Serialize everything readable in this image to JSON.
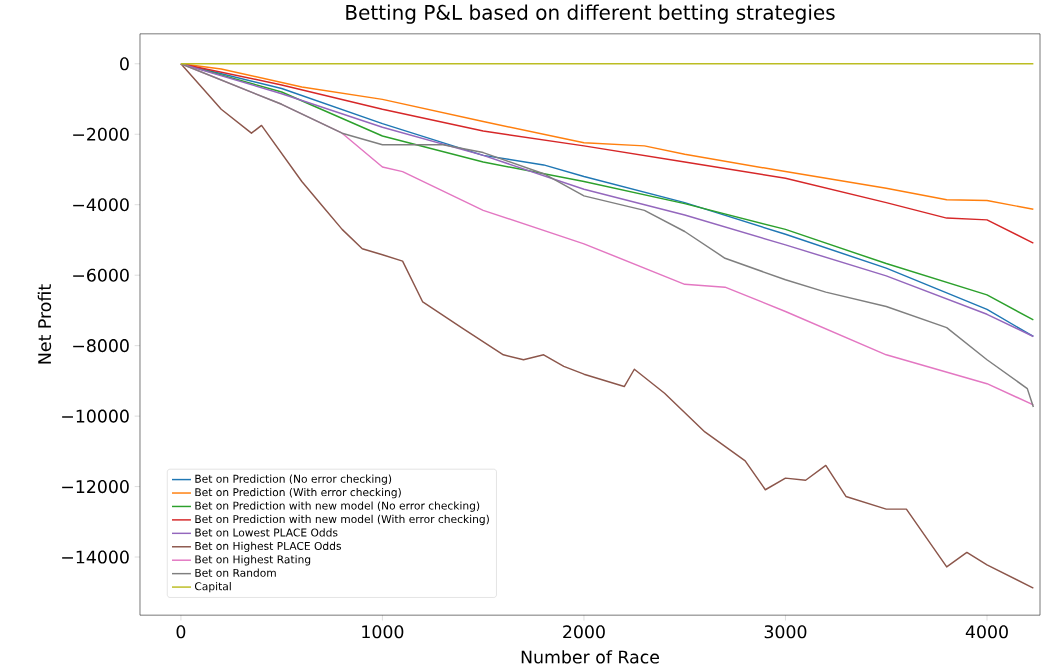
{
  "chart_data": {
    "type": "line",
    "title": "Betting P&L based on different betting strategies",
    "xlabel": "Number of Race",
    "ylabel": "Net Profit",
    "xlim": [
      -203,
      4263
    ],
    "ylim": [
      -15650,
      850
    ],
    "xticks": [
      0,
      1000,
      2000,
      3000,
      4000
    ],
    "yticks": [
      {
        "value": -14000,
        "label": "−14000"
      },
      {
        "value": -12000,
        "label": "−12000"
      },
      {
        "value": -10000,
        "label": "−10000"
      },
      {
        "value": -8000,
        "label": "−8000"
      },
      {
        "value": -6000,
        "label": "−6000"
      },
      {
        "value": -4000,
        "label": "−4000"
      },
      {
        "value": -2000,
        "label": "−2000"
      },
      0
    ],
    "legend": "bottom left",
    "grid": false,
    "marker": "none",
    "line_style": "solid",
    "series": [
      {
        "name": "Bet on Prediction (No error checking)",
        "color": "#1f77b4",
        "x": [
          0,
          500,
          1000,
          1500,
          1800,
          2000,
          2500,
          3000,
          3500,
          4000,
          4230
        ],
        "values": [
          0,
          -700,
          -1700,
          -2600,
          -2870,
          -3200,
          -3940,
          -4840,
          -5800,
          -6970,
          -7740
        ]
      },
      {
        "name": "Bet on Prediction (With error checking)",
        "color": "#ff7f0e",
        "x": [
          0,
          200,
          600,
          1000,
          1500,
          2000,
          2300,
          2500,
          3000,
          3500,
          3800,
          4000,
          4230
        ],
        "values": [
          0,
          -150,
          -660,
          -1010,
          -1640,
          -2240,
          -2330,
          -2570,
          -3060,
          -3530,
          -3860,
          -3880,
          -4130
        ]
      },
      {
        "name": "Bet on Prediction with new model (No error checking)",
        "color": "#2ca02c",
        "x": [
          0,
          500,
          1000,
          1500,
          2000,
          2500,
          3000,
          3500,
          4000,
          4230
        ],
        "values": [
          0,
          -800,
          -2050,
          -2790,
          -3340,
          -3970,
          -4700,
          -5670,
          -6560,
          -7270
        ]
      },
      {
        "name": "Bet on Prediction with new model (With error checking)",
        "color": "#d62728",
        "x": [
          0,
          500,
          1000,
          1500,
          2000,
          2500,
          3000,
          3500,
          3800,
          4000,
          4230
        ],
        "values": [
          0,
          -600,
          -1290,
          -1910,
          -2330,
          -2790,
          -3250,
          -3940,
          -4380,
          -4430,
          -5090
        ]
      },
      {
        "name": "Bet on Lowest PLACE Odds",
        "color": "#9467bd",
        "x": [
          0,
          500,
          1000,
          1500,
          2000,
          2500,
          3000,
          3500,
          4000,
          4230
        ],
        "values": [
          0,
          -850,
          -1800,
          -2600,
          -3560,
          -4290,
          -5140,
          -6020,
          -7110,
          -7740
        ]
      },
      {
        "name": "Bet on Highest PLACE Odds",
        "color": "#8c564b",
        "x": [
          0,
          200,
          350,
          400,
          600,
          700,
          800,
          900,
          1000,
          1100,
          1200,
          1400,
          1600,
          1700,
          1800,
          1900,
          2000,
          2200,
          2250,
          2400,
          2600,
          2800,
          2900,
          3000,
          3100,
          3200,
          3300,
          3500,
          3600,
          3700,
          3800,
          3900,
          4000,
          4230
        ],
        "values": [
          0,
          -1290,
          -1970,
          -1750,
          -3340,
          -4020,
          -4700,
          -5250,
          -5420,
          -5600,
          -6760,
          -7520,
          -8260,
          -8400,
          -8260,
          -8590,
          -8810,
          -9160,
          -8670,
          -9350,
          -10450,
          -11270,
          -12090,
          -11760,
          -11820,
          -11400,
          -12280,
          -12640,
          -12640,
          -13460,
          -14280,
          -13870,
          -14220,
          -14880
        ]
      },
      {
        "name": "Bet on Highest Rating",
        "color": "#e377c2",
        "x": [
          0,
          500,
          800,
          1000,
          1100,
          1500,
          2000,
          2500,
          2700,
          3000,
          3500,
          4000,
          4230
        ],
        "values": [
          0,
          -1150,
          -1970,
          -2930,
          -3060,
          -4160,
          -5110,
          -6260,
          -6340,
          -7030,
          -8260,
          -9080,
          -9680
        ]
      },
      {
        "name": "Bet on Random",
        "color": "#7f7f7f",
        "x": [
          0,
          500,
          800,
          1000,
          1300,
          1500,
          1800,
          2000,
          2300,
          2500,
          2700,
          3000,
          3200,
          3500,
          3800,
          4000,
          4200,
          4230
        ],
        "values": [
          0,
          -1150,
          -1970,
          -2300,
          -2300,
          -2520,
          -3120,
          -3750,
          -4160,
          -4760,
          -5520,
          -6130,
          -6480,
          -6890,
          -7490,
          -8400,
          -9220,
          -9740
        ]
      },
      {
        "name": "Capital",
        "color": "#bcbd22",
        "x": [
          0,
          4230
        ],
        "values": [
          0,
          0
        ]
      }
    ]
  }
}
